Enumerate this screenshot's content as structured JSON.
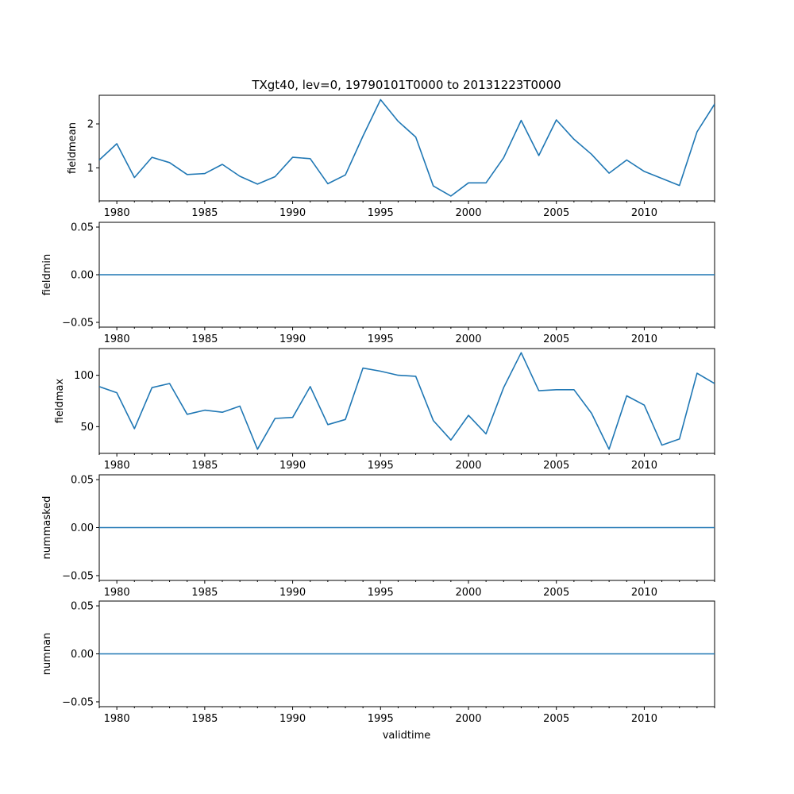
{
  "title": "TXgt40, lev=0, 19790101T0000 to 20131223T0000",
  "xlabel": "validtime",
  "line_color": "#1f77b4",
  "chart_data": [
    {
      "type": "line",
      "ylabel": "fieldmean",
      "x": [
        1979,
        1980,
        1981,
        1982,
        1983,
        1984,
        1985,
        1986,
        1987,
        1988,
        1989,
        1990,
        1991,
        1992,
        1993,
        1994,
        1995,
        1996,
        1997,
        1998,
        1999,
        2000,
        2001,
        2002,
        2003,
        2004,
        2005,
        2006,
        2007,
        2008,
        2009,
        2010,
        2011,
        2012,
        2013,
        2014
      ],
      "values": [
        1.18,
        1.55,
        0.78,
        1.24,
        1.12,
        0.85,
        0.87,
        1.08,
        0.81,
        0.63,
        0.8,
        1.24,
        1.21,
        0.64,
        0.84,
        1.72,
        2.55,
        2.06,
        1.7,
        0.59,
        0.36,
        0.66,
        0.66,
        1.23,
        2.08,
        1.28,
        2.09,
        1.65,
        1.31,
        0.88,
        1.18,
        0.92,
        0.76,
        0.6,
        1.82,
        2.45
      ],
      "xlim": [
        1979,
        2014
      ],
      "ylim": [
        0.25,
        2.65
      ],
      "xticks": [
        1980,
        1985,
        1990,
        1995,
        2000,
        2005,
        2010
      ],
      "xtick_labels": [
        "1980",
        "1985",
        "1990",
        "1995",
        "2000",
        "2005",
        "2010"
      ],
      "yticks": [
        1,
        2
      ],
      "ytick_labels": [
        "1",
        "2"
      ]
    },
    {
      "type": "line",
      "ylabel": "fieldmin",
      "x": [
        1979,
        2014
      ],
      "values": [
        0,
        0
      ],
      "xlim": [
        1979,
        2014
      ],
      "ylim": [
        -0.055,
        0.055
      ],
      "xticks": [
        1980,
        1985,
        1990,
        1995,
        2000,
        2005,
        2010
      ],
      "xtick_labels": [
        "1980",
        "1985",
        "1990",
        "1995",
        "2000",
        "2005",
        "2010"
      ],
      "yticks": [
        -0.05,
        0,
        0.05
      ],
      "ytick_labels": [
        "−0.05",
        "0.00",
        "0.05"
      ]
    },
    {
      "type": "line",
      "ylabel": "fieldmax",
      "x": [
        1979,
        1980,
        1981,
        1982,
        1983,
        1984,
        1985,
        1986,
        1987,
        1988,
        1989,
        1990,
        1991,
        1992,
        1993,
        1994,
        1995,
        1996,
        1997,
        1998,
        1999,
        2000,
        2001,
        2002,
        2003,
        2004,
        2005,
        2006,
        2007,
        2008,
        2009,
        2010,
        2011,
        2012,
        2013,
        2014
      ],
      "values": [
        89,
        83,
        48,
        88,
        92,
        62,
        66,
        64,
        70,
        28,
        58,
        59,
        89,
        52,
        57,
        107,
        104,
        100,
        99,
        56,
        37,
        61,
        43,
        88,
        122,
        85,
        86,
        86,
        63,
        28,
        80,
        71,
        32,
        38,
        102,
        92
      ],
      "xlim": [
        1979,
        2014
      ],
      "ylim": [
        24,
        126
      ],
      "xticks": [
        1980,
        1985,
        1990,
        1995,
        2000,
        2005,
        2010
      ],
      "xtick_labels": [
        "1980",
        "1985",
        "1990",
        "1995",
        "2000",
        "2005",
        "2010"
      ],
      "yticks": [
        50,
        100
      ],
      "ytick_labels": [
        "50",
        "100"
      ]
    },
    {
      "type": "line",
      "ylabel": "nummasked",
      "x": [
        1979,
        2014
      ],
      "values": [
        0,
        0
      ],
      "xlim": [
        1979,
        2014
      ],
      "ylim": [
        -0.055,
        0.055
      ],
      "xticks": [
        1980,
        1985,
        1990,
        1995,
        2000,
        2005,
        2010
      ],
      "xtick_labels": [
        "1980",
        "1985",
        "1990",
        "1995",
        "2000",
        "2005",
        "2010"
      ],
      "yticks": [
        -0.05,
        0,
        0.05
      ],
      "ytick_labels": [
        "−0.05",
        "0.00",
        "0.05"
      ]
    },
    {
      "type": "line",
      "ylabel": "numnan",
      "x": [
        1979,
        2014
      ],
      "values": [
        0,
        0
      ],
      "xlim": [
        1979,
        2014
      ],
      "ylim": [
        -0.055,
        0.055
      ],
      "xticks": [
        1980,
        1985,
        1990,
        1995,
        2000,
        2005,
        2010
      ],
      "xtick_labels": [
        "1980",
        "1985",
        "1990",
        "1995",
        "2000",
        "2005",
        "2010"
      ],
      "yticks": [
        -0.05,
        0,
        0.05
      ],
      "ytick_labels": [
        "−0.05",
        "0.00",
        "0.05"
      ]
    }
  ]
}
